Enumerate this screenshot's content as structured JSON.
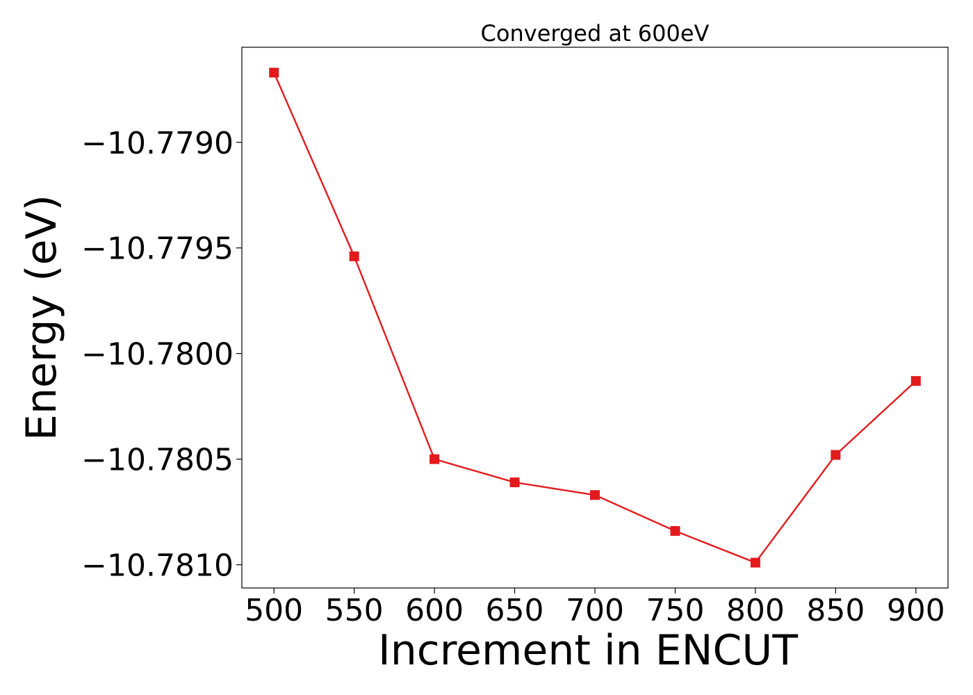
{
  "chart_data": {
    "type": "line",
    "title": "Converged at 600eV",
    "xlabel": "Increment in ENCUT",
    "ylabel": "Energy (eV)",
    "x": [
      500,
      550,
      600,
      650,
      700,
      750,
      800,
      850,
      900
    ],
    "series": [
      {
        "values": [
          -10.77867,
          -10.77954,
          -10.7805,
          -10.78061,
          -10.78067,
          -10.78084,
          -10.78099,
          -10.78048,
          -10.78013
        ],
        "color": "#e31a1c",
        "marker": "square"
      }
    ],
    "xticks": [
      500,
      550,
      600,
      650,
      700,
      750,
      800,
      850,
      900
    ],
    "xtick_labels": [
      "500",
      "550",
      "600",
      "650",
      "700",
      "750",
      "800",
      "850",
      "900"
    ],
    "yticks": [
      -10.779,
      -10.7795,
      -10.78,
      -10.7805,
      -10.781
    ],
    "ytick_labels": [
      "−10.7790",
      "−10.7795",
      "−10.7800",
      "−10.7805",
      "−10.7810"
    ],
    "xlim": [
      480,
      920
    ],
    "ylim": [
      -10.78111,
      -10.77855
    ],
    "grid": false,
    "legend": "none"
  }
}
